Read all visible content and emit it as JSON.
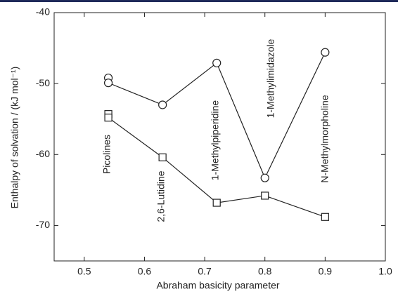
{
  "chart_data": {
    "type": "scatter",
    "x_label": "Abraham basicity parameter",
    "y_label": "Enthalpy of solvation / (kJ mol⁻¹)",
    "xlim": [
      0.45,
      1.0
    ],
    "xticks": [
      0.5,
      0.6,
      0.7,
      0.8,
      0.9,
      {
        "value": 1.0,
        "label": "1.0"
      }
    ],
    "ylim": [
      -75,
      -40
    ],
    "yticks": [
      -40,
      -50,
      -60,
      -70
    ],
    "series": [
      {
        "marker": "circle",
        "color": "#222222",
        "x": [
          0.54,
          0.54,
          0.63,
          0.72,
          0.8,
          0.9
        ],
        "values": [
          -49.2,
          -49.9,
          -53.0,
          -47.1,
          -63.3,
          -45.6
        ]
      },
      {
        "marker": "square",
        "color": "#222222",
        "x": [
          0.54,
          0.54,
          0.63,
          0.72,
          0.8,
          0.9
        ],
        "values": [
          -54.3,
          -54.8,
          -60.4,
          -66.8,
          -65.8,
          -68.8
        ]
      }
    ],
    "annotations": [
      "Picolines",
      "2,6-Lutidine",
      "1-Methylpiperidine",
      "1-Methylimidazole",
      "N-Methylmorpholine"
    ]
  }
}
